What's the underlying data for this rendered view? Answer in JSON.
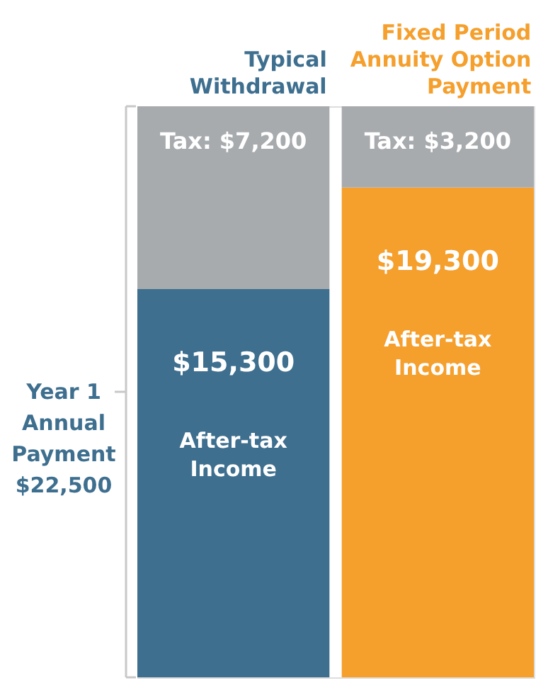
{
  "chart_data": {
    "type": "bar",
    "stacked": true,
    "categories": [
      "Typical Withdrawal",
      "Fixed Period Annuity Option Payment"
    ],
    "series": [
      {
        "name": "After-tax Income",
        "colors": [
          "#3e6f8f",
          "#f59f2d"
        ],
        "values": [
          15300,
          19300
        ],
        "value_labels": [
          "$15,300",
          "$19,300"
        ]
      },
      {
        "color": "#a8abae",
        "values": [
          7200,
          3200
        ],
        "value_labels": [
          "Tax: $7,200",
          "Tax: $3,200"
        ]
      }
    ],
    "annotations": [
      "Year 1 Annual Payment $22,500"
    ]
  }
}
